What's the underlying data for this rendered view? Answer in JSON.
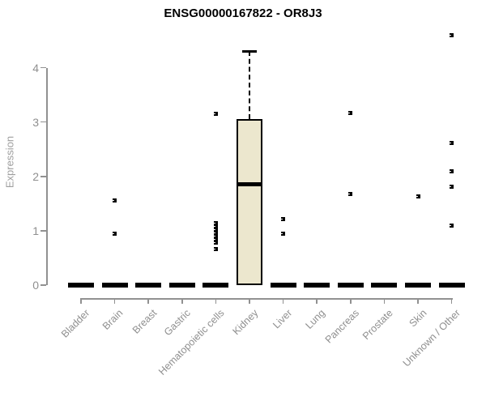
{
  "figure": {
    "title": "ENSG00000167822 - OR8J3"
  },
  "chart_data": {
    "type": "boxplot",
    "title": "ENSG00000167822 - OR8J3",
    "xlabel": "",
    "ylabel": "Expression",
    "ylim": [
      0,
      4.6
    ],
    "yticks": [
      0,
      1,
      2,
      3,
      4
    ],
    "grid": false,
    "legend": false,
    "categories": [
      "Bladder",
      "Brain",
      "Breast",
      "Gastric",
      "Hematopoietic cells",
      "Kidney",
      "Liver",
      "Lung",
      "Pancreas",
      "Prostate",
      "Skin",
      "Unknown / Other"
    ],
    "boxes": [
      {
        "category": "Bladder",
        "q1": 0,
        "median": 0,
        "q3": 0,
        "whisker_low": 0,
        "whisker_high": 0,
        "outliers": []
      },
      {
        "category": "Brain",
        "q1": 0,
        "median": 0,
        "q3": 0,
        "whisker_low": 0,
        "whisker_high": 0,
        "outliers": [
          0.95,
          1.55
        ]
      },
      {
        "category": "Breast",
        "q1": 0,
        "median": 0,
        "q3": 0,
        "whisker_low": 0,
        "whisker_high": 0,
        "outliers": []
      },
      {
        "category": "Gastric",
        "q1": 0,
        "median": 0,
        "q3": 0,
        "whisker_low": 0,
        "whisker_high": 0,
        "outliers": []
      },
      {
        "category": "Hematopoietic cells",
        "q1": 0,
        "median": 0,
        "q3": 0,
        "whisker_low": 0,
        "whisker_high": 0,
        "outliers": [
          0.66,
          0.78,
          0.84,
          0.9,
          0.96,
          1.02,
          1.08,
          1.14,
          3.15
        ]
      },
      {
        "category": "Kidney",
        "q1": 0,
        "median": 1.85,
        "q3": 3.05,
        "whisker_low": 0,
        "whisker_high": 4.3,
        "outliers": []
      },
      {
        "category": "Liver",
        "q1": 0,
        "median": 0,
        "q3": 0,
        "whisker_low": 0,
        "whisker_high": 0,
        "outliers": [
          0.95,
          1.22
        ]
      },
      {
        "category": "Lung",
        "q1": 0,
        "median": 0,
        "q3": 0,
        "whisker_low": 0,
        "whisker_high": 0,
        "outliers": []
      },
      {
        "category": "Pancreas",
        "q1": 0,
        "median": 0,
        "q3": 0,
        "whisker_low": 0,
        "whisker_high": 0,
        "outliers": [
          1.67,
          3.17
        ]
      },
      {
        "category": "Prostate",
        "q1": 0,
        "median": 0,
        "q3": 0,
        "whisker_low": 0,
        "whisker_high": 0,
        "outliers": []
      },
      {
        "category": "Skin",
        "q1": 0,
        "median": 0,
        "q3": 0,
        "whisker_low": 0,
        "whisker_high": 0,
        "outliers": [
          1.63
        ]
      },
      {
        "category": "Unknown / Other",
        "q1": 0,
        "median": 0,
        "q3": 0,
        "whisker_low": 0,
        "whisker_high": 0,
        "outliers": [
          1.1,
          1.81,
          2.09,
          2.62,
          4.6
        ]
      }
    ],
    "colors": {
      "box_fill": "#ece7ce",
      "box_border": "#000000",
      "median": "#000000",
      "outlier": "#000000",
      "axis": "#8f8f8f",
      "title": "#000000"
    }
  }
}
